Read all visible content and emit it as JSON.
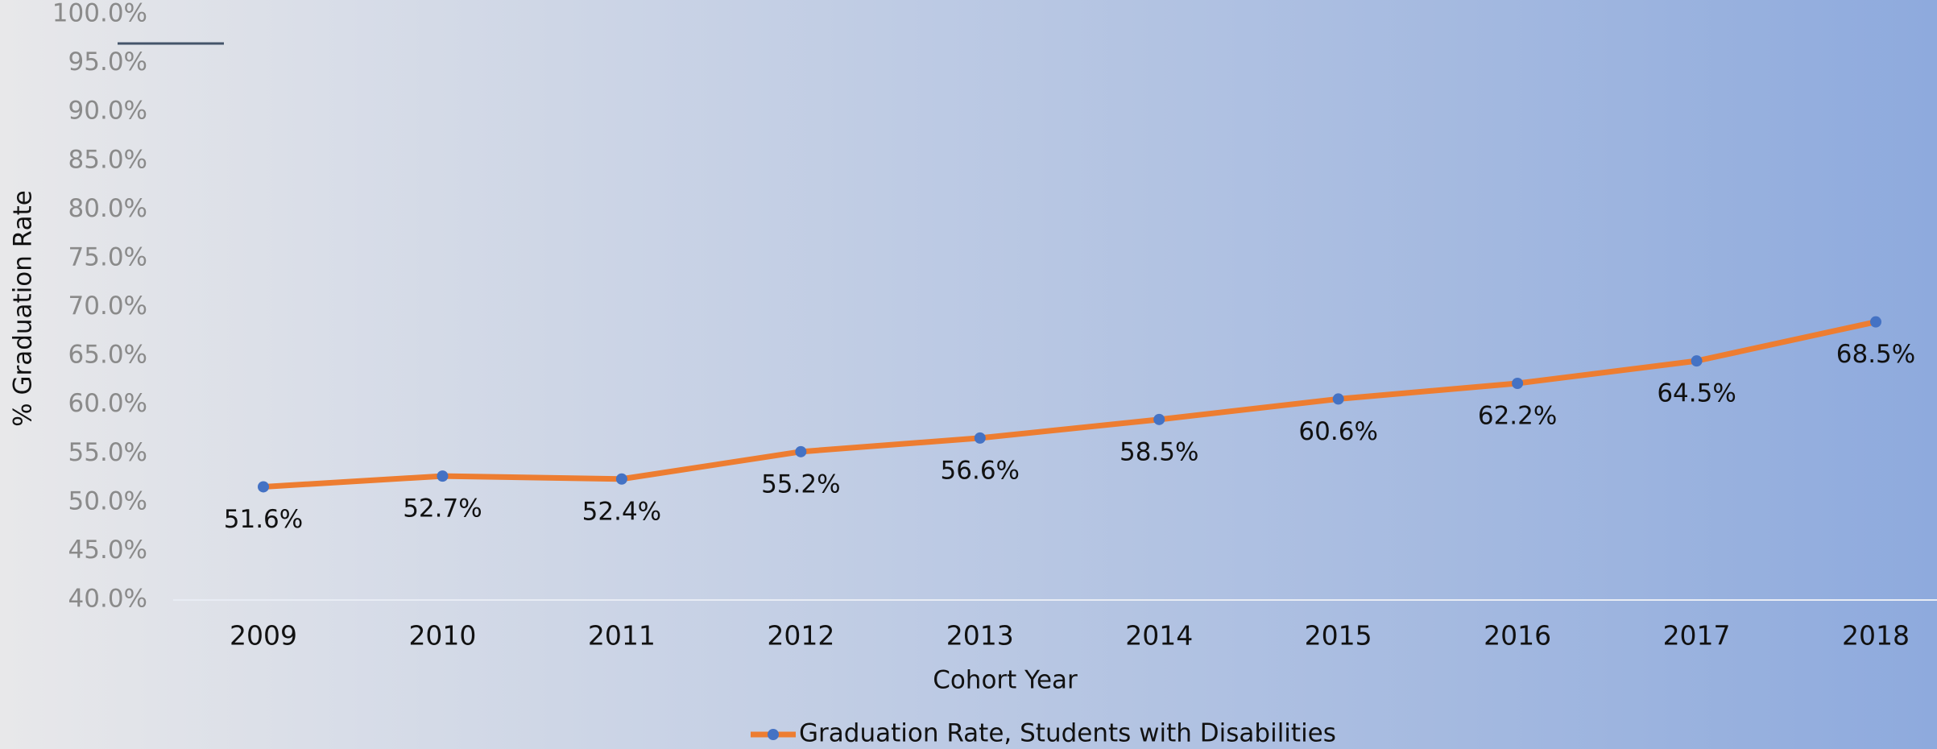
{
  "chart_data": {
    "type": "line",
    "x_label": "Cohort Year",
    "y_label": "% Graduation Rate",
    "categories": [
      "2009",
      "2010",
      "2011",
      "2012",
      "2013",
      "2014",
      "2015",
      "2016",
      "2017",
      "2018"
    ],
    "series": [
      {
        "name": "Graduation Rate, Students with Disabilities",
        "color": "#ed7d31",
        "marker_color": "#4472c4",
        "values": [
          51.6,
          52.7,
          52.4,
          55.2,
          56.6,
          58.5,
          60.6,
          62.2,
          64.5,
          68.5
        ],
        "value_labels": [
          "51.6%",
          "52.7%",
          "52.4%",
          "55.2%",
          "56.6%",
          "58.5%",
          "60.6%",
          "62.2%",
          "64.5%",
          "68.5%"
        ]
      }
    ],
    "ylim": [
      40,
      100
    ],
    "yticks": [
      {
        "value": 40,
        "label": "40.0%"
      },
      {
        "value": 45,
        "label": "45.0%"
      },
      {
        "value": 50,
        "label": "50.0%"
      },
      {
        "value": 55,
        "label": "55.0%"
      },
      {
        "value": 60,
        "label": "60.0%"
      },
      {
        "value": 65,
        "label": "65.0%"
      },
      {
        "value": 70,
        "label": "70.0%"
      },
      {
        "value": 75,
        "label": "75.0%"
      },
      {
        "value": 80,
        "label": "80.0%"
      },
      {
        "value": 85,
        "label": "85.0%"
      },
      {
        "value": 90,
        "label": "90.0%"
      },
      {
        "value": 95,
        "label": "95.0%"
      },
      {
        "value": 100,
        "label": "100.0%"
      }
    ],
    "legend": "bottom"
  }
}
